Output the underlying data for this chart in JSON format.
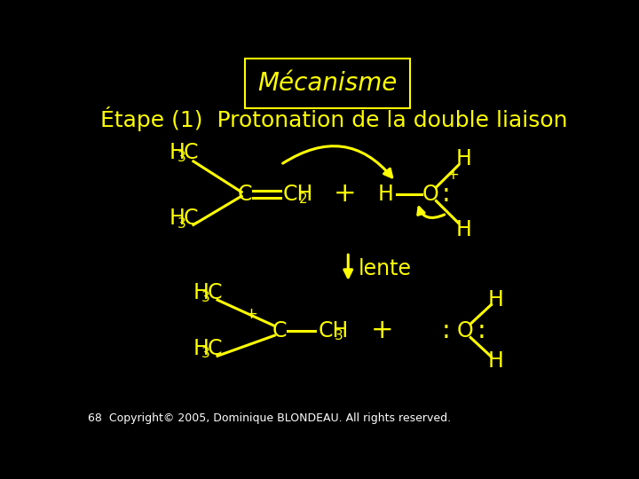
{
  "bg_color": "#000000",
  "text_color": "#FFFF00",
  "title": "Mécanisme",
  "subtitle": "Étape (1)  Protonation de la double liaison",
  "lente": "lente",
  "copyright": "68  Copyright© 2005, Dominique BLONDEAU. All rights reserved.",
  "font_size_title": 20,
  "font_size_subtitle": 18,
  "font_size_main": 17,
  "font_size_sub": 11,
  "font_size_copyright": 9
}
